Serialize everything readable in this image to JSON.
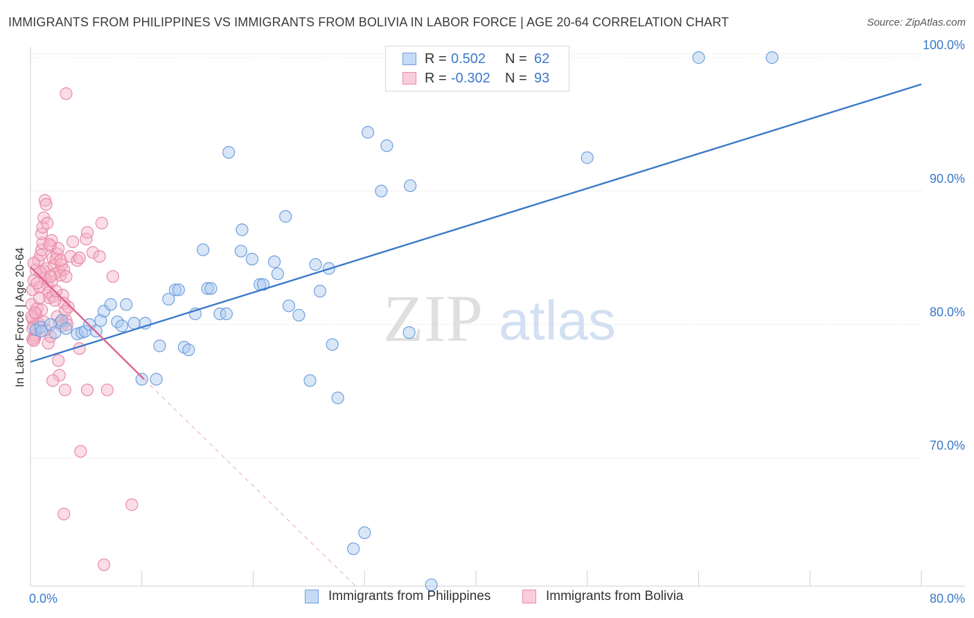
{
  "header": {
    "title": "IMMIGRANTS FROM PHILIPPINES VS IMMIGRANTS FROM BOLIVIA IN LABOR FORCE | AGE 20-64 CORRELATION CHART",
    "source": "Source: ZipAtlas.com"
  },
  "watermark": {
    "zip": "ZIP",
    "atlas": "atlas"
  },
  "legend_top": {
    "r_label": "R =",
    "n_label": "N =",
    "rows": [
      {
        "r": "0.502",
        "n": "62"
      },
      {
        "r": "-0.302",
        "n": "93"
      }
    ]
  },
  "colors": {
    "blue_fill": "#a9c8ef",
    "blue_stroke": "#6f9fdc",
    "blue_line": "#3a78c9",
    "pink_fill": "#f5b3c8",
    "pink_stroke": "#e98aa8",
    "pink_line": "#e0608c",
    "axis_label_blue": "#3a78c9",
    "grid": "#e6e6e6"
  },
  "chart_data": {
    "type": "scatter",
    "title": "IMMIGRANTS FROM PHILIPPINES VS IMMIGRANTS FROM BOLIVIA IN LABOR FORCE | AGE 20-64 CORRELATION CHART",
    "xlabel": "",
    "ylabel": "In Labor Force | Age 20-64",
    "xlim": [
      0,
      80
    ],
    "ylim": [
      60.4,
      101.2
    ],
    "x_tick_labels": [
      "0.0%",
      "80.0%"
    ],
    "y_ticks": [
      70,
      80,
      90,
      100
    ],
    "y_tick_labels": [
      "70.0%",
      "80.0%",
      "90.0%",
      "100.0%"
    ],
    "grid": true,
    "series": [
      {
        "name": "Immigrants from Philippines",
        "r": 0.502,
        "n": 62,
        "trend": {
          "x": [
            0,
            80
          ],
          "y": [
            77.2,
            98.0
          ],
          "dashed_extension": null
        },
        "points": [
          [
            0.5,
            79.6
          ],
          [
            0.9,
            79.8
          ],
          [
            1.0,
            79.5
          ],
          [
            1.8,
            80.0
          ],
          [
            2.2,
            79.4
          ],
          [
            2.8,
            80.3
          ],
          [
            3.2,
            79.7
          ],
          [
            4.2,
            79.3
          ],
          [
            4.6,
            79.4
          ],
          [
            4.9,
            79.5
          ],
          [
            5.3,
            80.0
          ],
          [
            5.9,
            79.5
          ],
          [
            6.3,
            80.3
          ],
          [
            6.6,
            81.0
          ],
          [
            7.2,
            81.5
          ],
          [
            7.8,
            80.2
          ],
          [
            8.2,
            79.9
          ],
          [
            8.6,
            81.5
          ],
          [
            9.3,
            80.1
          ],
          [
            10.3,
            80.1
          ],
          [
            10.0,
            75.9
          ],
          [
            11.3,
            75.9
          ],
          [
            11.6,
            78.4
          ],
          [
            12.4,
            81.9
          ],
          [
            13.0,
            82.6
          ],
          [
            13.3,
            82.6
          ],
          [
            13.8,
            78.3
          ],
          [
            14.2,
            78.1
          ],
          [
            14.8,
            80.8
          ],
          [
            15.5,
            85.6
          ],
          [
            15.9,
            82.7
          ],
          [
            16.2,
            82.7
          ],
          [
            17.0,
            80.8
          ],
          [
            17.6,
            80.8
          ],
          [
            17.8,
            92.9
          ],
          [
            18.9,
            85.5
          ],
          [
            19.0,
            87.1
          ],
          [
            19.9,
            84.9
          ],
          [
            20.6,
            83.0
          ],
          [
            20.9,
            83.0
          ],
          [
            21.9,
            84.7
          ],
          [
            22.2,
            83.8
          ],
          [
            22.9,
            88.1
          ],
          [
            23.2,
            81.4
          ],
          [
            24.1,
            80.7
          ],
          [
            25.1,
            75.8
          ],
          [
            25.6,
            84.5
          ],
          [
            26.0,
            82.5
          ],
          [
            26.8,
            84.2
          ],
          [
            27.1,
            78.5
          ],
          [
            27.6,
            74.5
          ],
          [
            29.0,
            63.2
          ],
          [
            30.0,
            64.4
          ],
          [
            30.3,
            94.4
          ],
          [
            31.5,
            90.0
          ],
          [
            32.0,
            93.4
          ],
          [
            34.0,
            79.4
          ],
          [
            34.1,
            90.4
          ],
          [
            36.0,
            60.5
          ],
          [
            50.0,
            92.5
          ],
          [
            60.0,
            100.0
          ],
          [
            66.6,
            100.0
          ]
        ]
      },
      {
        "name": "Immigrants from Bolivia",
        "r": -0.302,
        "n": 93,
        "trend": {
          "x": [
            0,
            10.2
          ],
          "y": [
            84.3,
            75.9
          ],
          "dashed_extension": {
            "x": [
              10.2,
              29.2
            ],
            "y": [
              75.9,
              60.4
            ]
          }
        },
        "points": [
          [
            0.1,
            81.5
          ],
          [
            0.2,
            80.4
          ],
          [
            0.3,
            79.9
          ],
          [
            0.4,
            79.0
          ],
          [
            0.5,
            80.8
          ],
          [
            0.6,
            81.2
          ],
          [
            0.7,
            80.1
          ],
          [
            0.2,
            82.6
          ],
          [
            0.3,
            83.3
          ],
          [
            0.5,
            84.1
          ],
          [
            0.7,
            84.8
          ],
          [
            0.9,
            85.2
          ],
          [
            1.0,
            85.6
          ],
          [
            1.1,
            86.1
          ],
          [
            1.2,
            84.0
          ],
          [
            1.3,
            83.5
          ],
          [
            1.4,
            84.2
          ],
          [
            1.5,
            83.0
          ],
          [
            1.6,
            82.4
          ],
          [
            1.7,
            82.0
          ],
          [
            1.8,
            85.9
          ],
          [
            1.9,
            86.3
          ],
          [
            2.0,
            85.0
          ],
          [
            2.1,
            84.4
          ],
          [
            2.2,
            83.8
          ],
          [
            2.3,
            84.9
          ],
          [
            2.4,
            85.3
          ],
          [
            2.5,
            85.7
          ],
          [
            2.6,
            84.0
          ],
          [
            2.7,
            83.7
          ],
          [
            2.8,
            84.5
          ],
          [
            2.9,
            82.2
          ],
          [
            3.0,
            81.6
          ],
          [
            3.1,
            81.0
          ],
          [
            3.2,
            80.3
          ],
          [
            3.3,
            80.0
          ],
          [
            0.8,
            82.8
          ],
          [
            0.9,
            83.9
          ],
          [
            1.0,
            86.8
          ],
          [
            1.1,
            87.3
          ],
          [
            1.2,
            88.0
          ],
          [
            1.3,
            89.3
          ],
          [
            1.4,
            89.0
          ],
          [
            1.5,
            87.6
          ],
          [
            1.7,
            86.0
          ],
          [
            1.9,
            83.2
          ],
          [
            2.0,
            82.1
          ],
          [
            2.2,
            81.8
          ],
          [
            2.4,
            80.6
          ],
          [
            2.6,
            80.1
          ],
          [
            2.8,
            79.9
          ],
          [
            3.0,
            84.1
          ],
          [
            3.2,
            83.6
          ],
          [
            3.4,
            81.3
          ],
          [
            3.6,
            85.1
          ],
          [
            3.8,
            86.2
          ],
          [
            4.2,
            84.8
          ],
          [
            4.4,
            85.0
          ],
          [
            5.0,
            86.4
          ],
          [
            5.1,
            86.9
          ],
          [
            5.6,
            85.4
          ],
          [
            6.2,
            85.1
          ],
          [
            6.4,
            87.6
          ],
          [
            7.4,
            83.6
          ],
          [
            1.6,
            78.6
          ],
          [
            1.8,
            79.1
          ],
          [
            2.5,
            77.3
          ],
          [
            2.6,
            76.2
          ],
          [
            2.0,
            75.8
          ],
          [
            3.1,
            75.1
          ],
          [
            5.1,
            75.1
          ],
          [
            6.9,
            75.1
          ],
          [
            4.4,
            78.2
          ],
          [
            4.5,
            70.5
          ],
          [
            3.0,
            65.8
          ],
          [
            9.1,
            66.5
          ],
          [
            6.6,
            62.0
          ],
          [
            3.2,
            97.3
          ],
          [
            0.3,
            84.6
          ],
          [
            0.6,
            83.1
          ],
          [
            0.8,
            82.0
          ],
          [
            1.0,
            81.1
          ],
          [
            1.2,
            80.2
          ],
          [
            1.4,
            79.6
          ],
          [
            0.4,
            79.2
          ],
          [
            0.2,
            79.7
          ],
          [
            0.1,
            80.6
          ],
          [
            0.2,
            78.9
          ],
          [
            0.3,
            78.8
          ],
          [
            0.4,
            80.9
          ],
          [
            2.7,
            84.8
          ],
          [
            1.8,
            83.6
          ],
          [
            2.3,
            82.5
          ]
        ]
      }
    ]
  }
}
